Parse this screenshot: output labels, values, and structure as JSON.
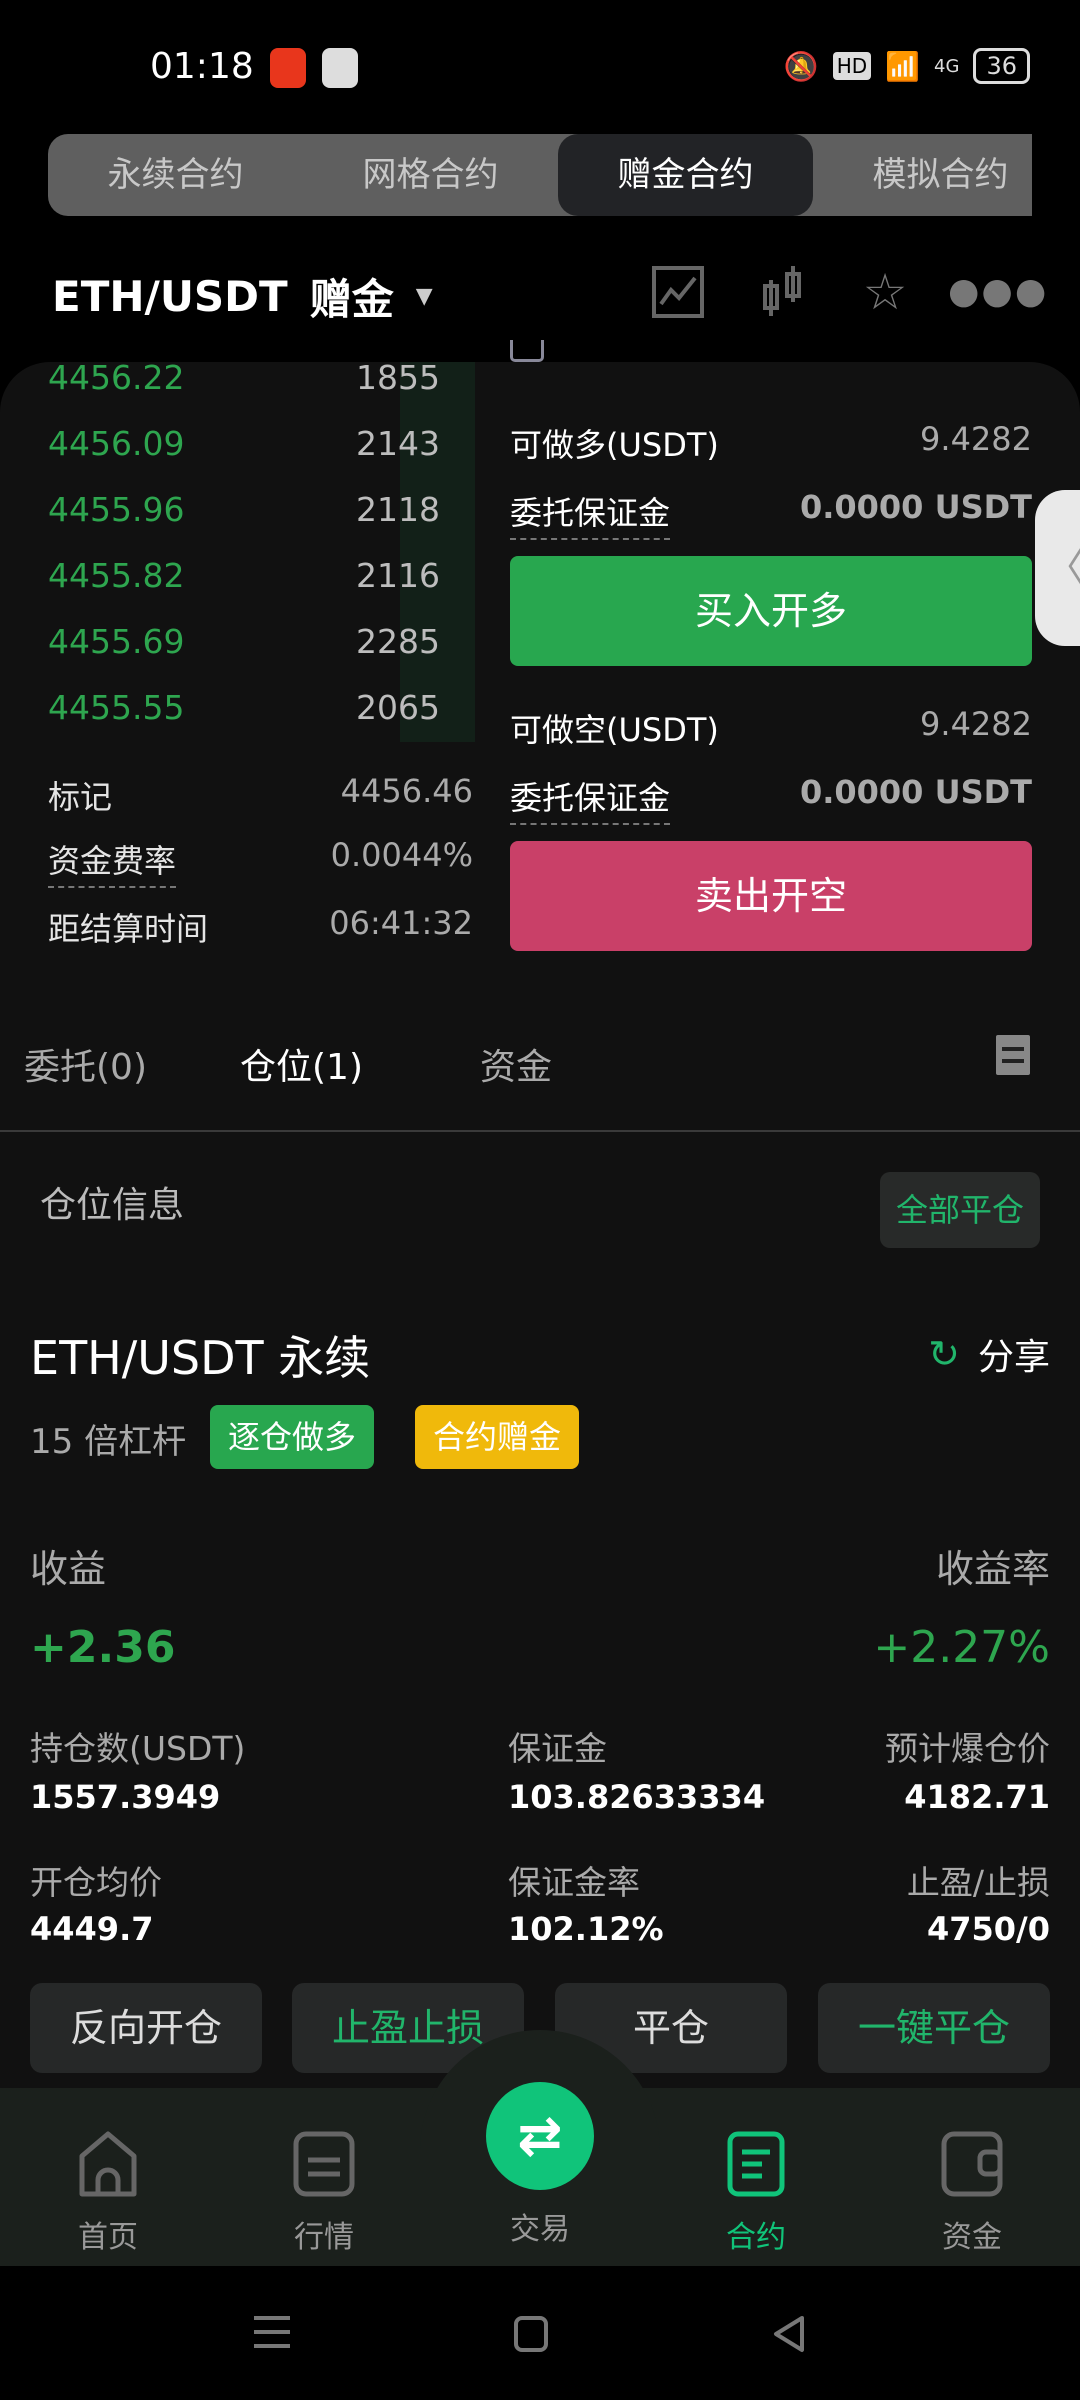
{
  "status_bar": {
    "time": "01:18",
    "battery": "36",
    "hd": "HD",
    "network": "4G"
  },
  "top_tabs": [
    {
      "label": "永续合约"
    },
    {
      "label": "网格合约"
    },
    {
      "label": "赠金合约",
      "active": true
    },
    {
      "label": "模拟合约"
    }
  ],
  "header": {
    "pair": "ETH/USDT",
    "mode": "赠金",
    "icons": [
      "chart-icon",
      "candlestick-icon",
      "star-icon",
      "more-icon"
    ]
  },
  "orderbook": [
    {
      "price": "4456.22",
      "qty": "1855"
    },
    {
      "price": "4456.09",
      "qty": "2143"
    },
    {
      "price": "4455.96",
      "qty": "2118"
    },
    {
      "price": "4455.82",
      "qty": "2116"
    },
    {
      "price": "4455.69",
      "qty": "2285"
    },
    {
      "price": "4455.55",
      "qty": "2065"
    }
  ],
  "market_info": [
    {
      "label": "标记",
      "value": "4456.46"
    },
    {
      "label": "资金费率",
      "value": "0.0044%"
    },
    {
      "label": "距结算时间",
      "value": "06:41:32"
    }
  ],
  "order_panel": {
    "long_avail_label": "可做多(USDT)",
    "long_avail": "9.4282",
    "margin_label": "委托保证金",
    "long_margin": "0.0000 USDT",
    "buy_label": "买入开多",
    "short_avail_label": "可做空(USDT)",
    "short_avail": "9.4282",
    "short_margin": "0.0000 USDT",
    "sell_label": "卖出开空"
  },
  "position_tabs": [
    {
      "label": "委托(0)"
    },
    {
      "label": "仓位(1)",
      "active": true
    },
    {
      "label": "资金"
    }
  ],
  "position": {
    "section_title": "仓位信息",
    "close_all": "全部平仓",
    "title": "ETH/USDT 永续",
    "share": "分享",
    "leverage": "15 倍杠杆",
    "badge_side": "逐仓做多",
    "badge_bonus": "合约赠金",
    "pnl_label": "收益",
    "pnl": "+2.36",
    "roe_label": "收益率",
    "roe": "+2.27%",
    "fields": [
      {
        "label": "持仓数(USDT)",
        "value": "1557.3949"
      },
      {
        "label": "保证金",
        "value": "103.82633334"
      },
      {
        "label": "预计爆仓价",
        "value": "4182.71"
      },
      {
        "label": "开仓均价",
        "value": "4449.7"
      },
      {
        "label": "保证金率",
        "value": "102.12%"
      },
      {
        "label": "止盈/止损",
        "value": "4750/0"
      }
    ],
    "actions": [
      "反向开仓",
      "止盈止损",
      "平仓",
      "一键平仓"
    ]
  },
  "bottom_nav": [
    {
      "label": "首页"
    },
    {
      "label": "行情"
    },
    {
      "label": "交易"
    },
    {
      "label": "合约",
      "active": true
    },
    {
      "label": "资金"
    }
  ],
  "colors": {
    "green": "#2ea64f",
    "red": "#c94068",
    "accent": "#10c47a",
    "yellow": "#f0b90b"
  }
}
